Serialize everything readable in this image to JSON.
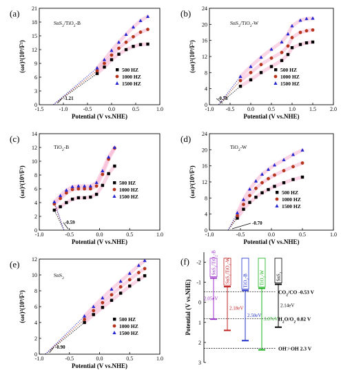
{
  "colors": {
    "s500": "#000000",
    "s1000": "#b5341c",
    "s1500": "#2424d0",
    "band": "#f6b3d2"
  },
  "chart_data": [
    {
      "panel": "(a)",
      "type": "scatter",
      "material": "SnS₂/TiO₂-B",
      "xlabel": "Potential (V vs.NHE)",
      "ylabel": "(ωε)²(10⁹/F²)",
      "xlim": [
        -1.5,
        1.0
      ],
      "ylim": [
        0,
        21
      ],
      "xticks": [
        "-1.5",
        "-1.0",
        "-0.5",
        "0.0",
        "0.5",
        "1.0"
      ],
      "yticks": [
        "0",
        "3",
        "6",
        "9",
        "12",
        "15",
        "18",
        "21"
      ],
      "intercept": -1.21,
      "intercept_label": "-1.21",
      "fit_from": -0.25,
      "x_range": [
        -0.3,
        0.75
      ],
      "series": [
        {
          "name": "500 HZ",
          "points": [
            [
              -0.3,
              6.8
            ],
            [
              -0.15,
              8.2
            ],
            [
              0.0,
              9.8
            ],
            [
              0.15,
              11.0
            ],
            [
              0.3,
              12.0
            ],
            [
              0.45,
              12.7
            ],
            [
              0.6,
              13.1
            ],
            [
              0.75,
              13.2
            ]
          ]
        },
        {
          "name": "1000 HZ",
          "points": [
            [
              -0.3,
              7.4
            ],
            [
              -0.15,
              9.0
            ],
            [
              0.0,
              10.8
            ],
            [
              0.15,
              12.3
            ],
            [
              0.3,
              13.6
            ],
            [
              0.45,
              14.8
            ],
            [
              0.6,
              15.8
            ],
            [
              0.75,
              16.4
            ]
          ]
        },
        {
          "name": "1500 HZ",
          "points": [
            [
              -0.3,
              8.0
            ],
            [
              -0.15,
              9.8
            ],
            [
              0.0,
              11.8
            ],
            [
              0.15,
              13.6
            ],
            [
              0.3,
              15.3
            ],
            [
              0.45,
              16.9
            ],
            [
              0.6,
              18.3
            ],
            [
              0.75,
              19.2
            ]
          ]
        }
      ],
      "legend": [
        "500 HZ",
        "1000 HZ",
        "1500 HZ"
      ]
    },
    {
      "panel": "(b)",
      "type": "scatter",
      "material": "SnS₂/TiO₂-W",
      "xlabel": "Potential (V vs.NHE)",
      "ylabel": "(ωε)²(10⁹/F²)",
      "xlim": [
        -1.0,
        2.0
      ],
      "ylim": [
        0,
        24
      ],
      "xticks": [
        "-1.0",
        "-0.5",
        "0.0",
        "0.5",
        "1.0",
        "1.5",
        "2.0"
      ],
      "yticks": [
        "0",
        "4",
        "8",
        "12",
        "16",
        "20",
        "24"
      ],
      "intercept": -0.78,
      "intercept_label": "-0.78",
      "fit_from": -0.2,
      "x_range": [
        -0.25,
        1.5
      ],
      "series": [
        {
          "name": "500 HZ",
          "points": [
            [
              -0.25,
              4.6
            ],
            [
              0.0,
              6.2
            ],
            [
              0.25,
              8.0
            ],
            [
              0.5,
              9.5
            ],
            [
              0.75,
              11.0
            ],
            [
              0.9,
              12.5
            ],
            [
              1.0,
              14.2
            ],
            [
              1.2,
              15.0
            ],
            [
              1.35,
              15.4
            ],
            [
              1.5,
              15.6
            ]
          ]
        },
        {
          "name": "1000 HZ",
          "points": [
            [
              -0.25,
              6.0
            ],
            [
              0.0,
              8.0
            ],
            [
              0.25,
              10.0
            ],
            [
              0.5,
              11.6
            ],
            [
              0.75,
              13.0
            ],
            [
              0.9,
              14.6
            ],
            [
              1.0,
              16.7
            ],
            [
              1.2,
              18.0
            ],
            [
              1.35,
              18.4
            ],
            [
              1.5,
              18.6
            ]
          ]
        },
        {
          "name": "1500 HZ",
          "points": [
            [
              -0.25,
              7.0
            ],
            [
              0.0,
              9.5
            ],
            [
              0.25,
              11.8
            ],
            [
              0.5,
              13.8
            ],
            [
              0.75,
              15.6
            ],
            [
              0.9,
              17.6
            ],
            [
              1.0,
              19.6
            ],
            [
              1.2,
              21.0
            ],
            [
              1.35,
              21.4
            ],
            [
              1.5,
              21.5
            ]
          ]
        }
      ],
      "legend": [
        "500 HZ",
        "1000 HZ",
        "1500 HZ"
      ]
    },
    {
      "panel": "(c)",
      "type": "scatter",
      "material": "TiO₂-B",
      "xlabel": "Potential (V vs.NHE)",
      "ylabel": "(ωε)²(10⁹/F²)",
      "xlim": [
        -1.0,
        1.0
      ],
      "ylim": [
        0,
        14
      ],
      "xticks": [
        "-1.0",
        "-0.5",
        "0.0",
        "0.5",
        "1.0"
      ],
      "yticks": [
        "0",
        "2",
        "4",
        "6",
        "8",
        "10",
        "12",
        "14"
      ],
      "intercept": -0.59,
      "intercept_label": "-0.59",
      "fit_from": -0.5,
      "x_range": [
        -0.75,
        0.25
      ],
      "series": [
        {
          "name": "500 HZ",
          "points": [
            [
              -0.75,
              2.9
            ],
            [
              -0.65,
              3.4
            ],
            [
              -0.55,
              4.0
            ],
            [
              -0.45,
              4.5
            ],
            [
              -0.35,
              4.7
            ],
            [
              -0.25,
              4.7
            ],
            [
              -0.15,
              4.8
            ],
            [
              -0.05,
              5.2
            ],
            [
              0.05,
              6.5
            ],
            [
              0.15,
              8.2
            ],
            [
              0.25,
              9.3
            ]
          ]
        },
        {
          "name": "1000 HZ",
          "points": [
            [
              -0.75,
              3.8
            ],
            [
              -0.65,
              4.6
            ],
            [
              -0.55,
              5.4
            ],
            [
              -0.45,
              5.9
            ],
            [
              -0.35,
              6.0
            ],
            [
              -0.25,
              6.0
            ],
            [
              -0.15,
              6.0
            ],
            [
              -0.05,
              6.4
            ],
            [
              0.05,
              8.1
            ],
            [
              0.15,
              10.3
            ],
            [
              0.25,
              11.9
            ]
          ]
        },
        {
          "name": "1500 HZ",
          "points": [
            [
              -0.75,
              4.1
            ],
            [
              -0.65,
              5.0
            ],
            [
              -0.55,
              5.8
            ],
            [
              -0.45,
              6.3
            ],
            [
              -0.35,
              6.4
            ],
            [
              -0.25,
              6.4
            ],
            [
              -0.15,
              6.4
            ],
            [
              -0.05,
              6.9
            ],
            [
              0.05,
              8.6
            ],
            [
              0.15,
              10.6
            ],
            [
              0.25,
              12.0
            ]
          ]
        }
      ],
      "legend": [
        "500 HZ",
        "1000 HZ",
        "1500 HZ"
      ]
    },
    {
      "panel": "(d)",
      "type": "scatter",
      "material": "TiO₂-W",
      "xlabel": "Potential (V vs.NHE)",
      "ylabel": "(ωε)²(10⁹/F²)",
      "xlim": [
        -1.0,
        1.0
      ],
      "ylim": [
        0,
        24
      ],
      "xticks": [
        "-1.0",
        "-0.5",
        "0.0",
        "0.5",
        "1.0"
      ],
      "yticks": [
        "0",
        "4",
        "8",
        "12",
        "16",
        "20",
        "24"
      ],
      "intercept": -0.7,
      "intercept_label": "-0.70",
      "fit_from": -0.55,
      "x_range": [
        -0.55,
        0.5
      ],
      "series": [
        {
          "name": "500 HZ",
          "points": [
            [
              -0.55,
              3.0
            ],
            [
              -0.45,
              5.2
            ],
            [
              -0.35,
              6.9
            ],
            [
              -0.25,
              8.2
            ],
            [
              -0.15,
              9.3
            ],
            [
              -0.05,
              10.1
            ],
            [
              0.05,
              10.9
            ],
            [
              0.2,
              11.8
            ],
            [
              0.35,
              12.6
            ],
            [
              0.5,
              13.2
            ]
          ]
        },
        {
          "name": "1000 HZ",
          "points": [
            [
              -0.55,
              3.6
            ],
            [
              -0.45,
              6.4
            ],
            [
              -0.35,
              8.6
            ],
            [
              -0.25,
              10.4
            ],
            [
              -0.15,
              11.8
            ],
            [
              -0.05,
              12.8
            ],
            [
              0.05,
              13.7
            ],
            [
              0.2,
              14.8
            ],
            [
              0.35,
              15.8
            ],
            [
              0.5,
              16.7
            ]
          ]
        },
        {
          "name": "1500 HZ",
          "points": [
            [
              -0.55,
              4.3
            ],
            [
              -0.45,
              7.6
            ],
            [
              -0.35,
              10.2
            ],
            [
              -0.25,
              12.2
            ],
            [
              -0.15,
              13.9
            ],
            [
              -0.05,
              15.1
            ],
            [
              0.05,
              16.2
            ],
            [
              0.2,
              17.5
            ],
            [
              0.35,
              18.8
            ],
            [
              0.5,
              19.9
            ]
          ]
        }
      ],
      "legend": [
        "500 HZ",
        "1000 HZ",
        "1500 HZ"
      ]
    },
    {
      "panel": "(e)",
      "type": "scatter",
      "material": "SnS₂",
      "xlabel": "Potential (V vs.NHE)",
      "ylabel": "(ωε)²(10⁹/F²)",
      "xlim": [
        -1.0,
        1.0
      ],
      "ylim": [
        0,
        12
      ],
      "xticks": [
        "-1.0",
        "-0.5",
        "0.0",
        "0.5",
        "1.0"
      ],
      "yticks": [
        "0",
        "2",
        "4",
        "6",
        "8",
        "10",
        "12"
      ],
      "intercept": -0.9,
      "intercept_label": "-0.90",
      "fit_from": -0.25,
      "x_range": [
        -0.25,
        0.75
      ],
      "series": [
        {
          "name": "500 HZ",
          "points": [
            [
              -0.25,
              4.0
            ],
            [
              -0.1,
              5.0
            ],
            [
              0.05,
              5.9
            ],
            [
              0.2,
              6.8
            ],
            [
              0.35,
              7.7
            ],
            [
              0.5,
              8.6
            ],
            [
              0.65,
              9.4
            ],
            [
              0.75,
              9.9
            ]
          ]
        },
        {
          "name": "1000 HZ",
          "points": [
            [
              -0.25,
              4.4
            ],
            [
              -0.1,
              5.5
            ],
            [
              0.05,
              6.5
            ],
            [
              0.2,
              7.5
            ],
            [
              0.35,
              8.5
            ],
            [
              0.5,
              9.4
            ],
            [
              0.65,
              10.3
            ],
            [
              0.75,
              10.8
            ]
          ]
        },
        {
          "name": "1500 HZ",
          "points": [
            [
              -0.25,
              4.8
            ],
            [
              -0.1,
              6.0
            ],
            [
              0.05,
              7.1
            ],
            [
              0.2,
              8.2
            ],
            [
              0.35,
              9.2
            ],
            [
              0.5,
              10.2
            ],
            [
              0.65,
              11.2
            ],
            [
              0.75,
              11.8
            ]
          ]
        }
      ],
      "legend": [
        "500 HZ",
        "1000 HZ",
        "1500 HZ"
      ]
    },
    {
      "panel": "(f)",
      "type": "diagram",
      "ylabel": "Potential (V vs.NHE)",
      "ylim": [
        -2.5,
        3.0
      ],
      "yticks": [
        "-2",
        "-1",
        "0",
        "1",
        "2",
        "3"
      ],
      "ytick_values": [
        -2,
        -1,
        0,
        1,
        2,
        3
      ],
      "levels": [
        {
          "label": "CO₂/CO -0.53 V",
          "value": -0.53
        },
        {
          "label": "H₂O/O₂ 0.82 V",
          "value": 0.82
        },
        {
          "label": "OH⁻/·OH 2.3 V",
          "value": 2.3
        }
      ],
      "bands": [
        {
          "name": "SnS₂/TiO₂-B",
          "cb": -1.21,
          "vb": 0.84,
          "gap": "2.05eV",
          "color": "#9b30c8"
        },
        {
          "name": "SnS₂/TiO₂-W",
          "cb": -0.78,
          "vb": 1.4,
          "gap": "2.18eV",
          "color": "#c02020"
        },
        {
          "name": "TiO₂-B",
          "cb": -0.59,
          "vb": 1.91,
          "gap": "2.50eV",
          "color": "#2030c8"
        },
        {
          "name": "TiO₂-W",
          "cb": -0.7,
          "vb": 2.37,
          "gap": "3.07eV",
          "color": "#18b018"
        },
        {
          "name": "SnS₂",
          "cb": -0.9,
          "vb": 1.24,
          "gap": "2.14eV",
          "color": "#000000"
        }
      ]
    }
  ]
}
